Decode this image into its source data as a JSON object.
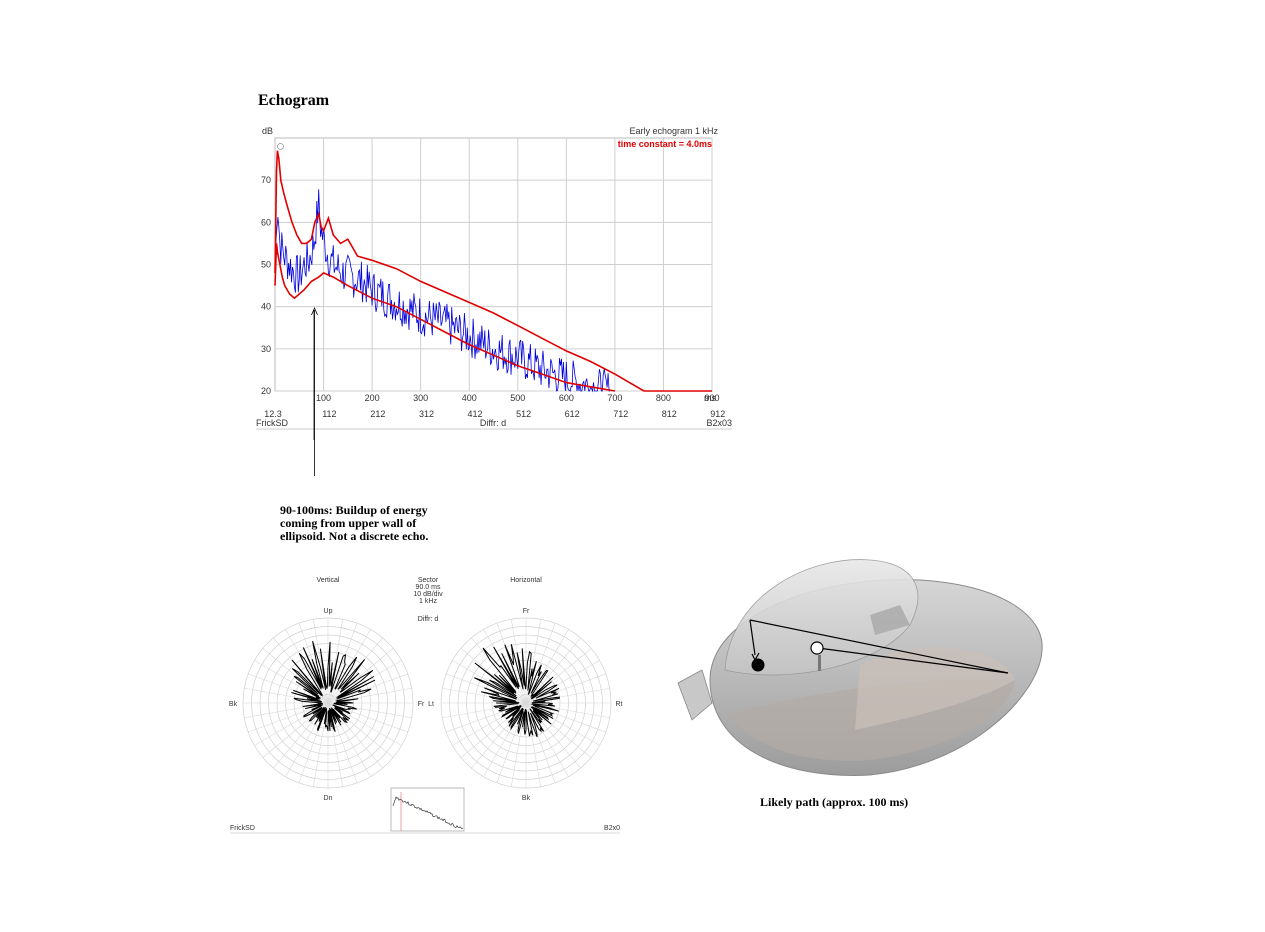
{
  "page": {
    "title": "Echogram",
    "annotation_lines": [
      "90-100ms: Buildup of energy",
      "coming from upper wall of",
      "ellipsoid. Not a discrete echo."
    ],
    "room_caption": "Likely path (approx. 100 ms)"
  },
  "chart_data": [
    {
      "type": "line",
      "title": "Early echogram  1 kHz",
      "subtitle": "time constant = 4.0ms",
      "ylabel": "dB",
      "xunit": "ms",
      "xlim": [
        0,
        900
      ],
      "ylim": [
        20,
        80
      ],
      "xticks": [
        100,
        200,
        300,
        400,
        500,
        600,
        700,
        800,
        900
      ],
      "xticks_secondary": [
        "12.3",
        "112",
        "212",
        "312",
        "412",
        "512",
        "612",
        "712",
        "812",
        "912"
      ],
      "yticks": [
        20,
        30,
        40,
        50,
        60,
        70
      ],
      "footer_left": "FrickSD",
      "footer_center": "Diffr: d",
      "footer_right": "B2x03",
      "grid": true,
      "colors": {
        "upper": "#e00000",
        "lower": "#e00000",
        "impulse": "#0000dd"
      },
      "series": [
        {
          "x": [
            0,
            3,
            5,
            8,
            12,
            18,
            25,
            35,
            45,
            55,
            65,
            75,
            82,
            90,
            95,
            100,
            110,
            120,
            135,
            150,
            160,
            170,
            200,
            250,
            300,
            350,
            400,
            450,
            500,
            550,
            600,
            650,
            700,
            760,
            800,
            900
          ],
          "y": [
            48,
            72,
            77,
            75,
            70,
            67,
            64,
            60,
            57,
            55,
            55,
            56,
            60,
            62,
            59,
            58,
            61,
            57,
            55,
            56,
            54,
            52,
            51,
            49,
            46,
            43.5,
            41,
            38.5,
            35.5,
            32.5,
            29.5,
            27,
            24,
            20,
            20,
            20
          ]
        },
        {
          "x": [
            0,
            3,
            5,
            10,
            15,
            20,
            30,
            40,
            50,
            60,
            75,
            90,
            100,
            120,
            150,
            200,
            250,
            300,
            350,
            400,
            450,
            500,
            550,
            600,
            650,
            700
          ],
          "y": [
            45,
            55,
            53,
            50,
            47,
            45,
            43,
            42,
            43,
            44,
            46,
            47,
            48,
            47,
            45,
            42,
            40,
            37,
            34,
            31,
            28.5,
            26,
            24,
            22,
            21,
            20
          ]
        },
        {
          "x": [
            0,
            5,
            10,
            20,
            30,
            40,
            50,
            60,
            70,
            80,
            85,
            90,
            95,
            100,
            110,
            120,
            140,
            160,
            180,
            200,
            250,
            300,
            350,
            400,
            450,
            500,
            550,
            600,
            650,
            690
          ],
          "y": [
            48,
            66,
            55,
            52,
            50,
            48,
            47,
            50,
            51,
            55,
            60,
            64,
            58,
            56,
            52,
            50,
            48,
            47,
            46,
            44,
            41,
            38,
            36,
            33,
            30,
            28,
            25,
            23,
            21,
            20
          ],
          "spread": 5
        }
      ]
    },
    {
      "type": "polar",
      "title": "Vertical",
      "labels": [
        "Up",
        "Fr",
        "Dn",
        "Bk"
      ],
      "rings": 10,
      "spokes": 36
    },
    {
      "type": "polar",
      "title": "Horizontal",
      "labels": [
        "Fr",
        "Rt",
        "Bk",
        "Lt"
      ],
      "rings": 10,
      "spokes": 36
    }
  ],
  "sector": {
    "title": "Sector",
    "lines": [
      "90.0 ms",
      "10 dB/div",
      "1 kHz"
    ],
    "diffr": "Diffr: d",
    "footer_left": "FrickSD",
    "footer_right": "B2x0"
  },
  "icons": [
    "source-dot-icon",
    "receiver-dot-icon",
    "person-icon"
  ]
}
